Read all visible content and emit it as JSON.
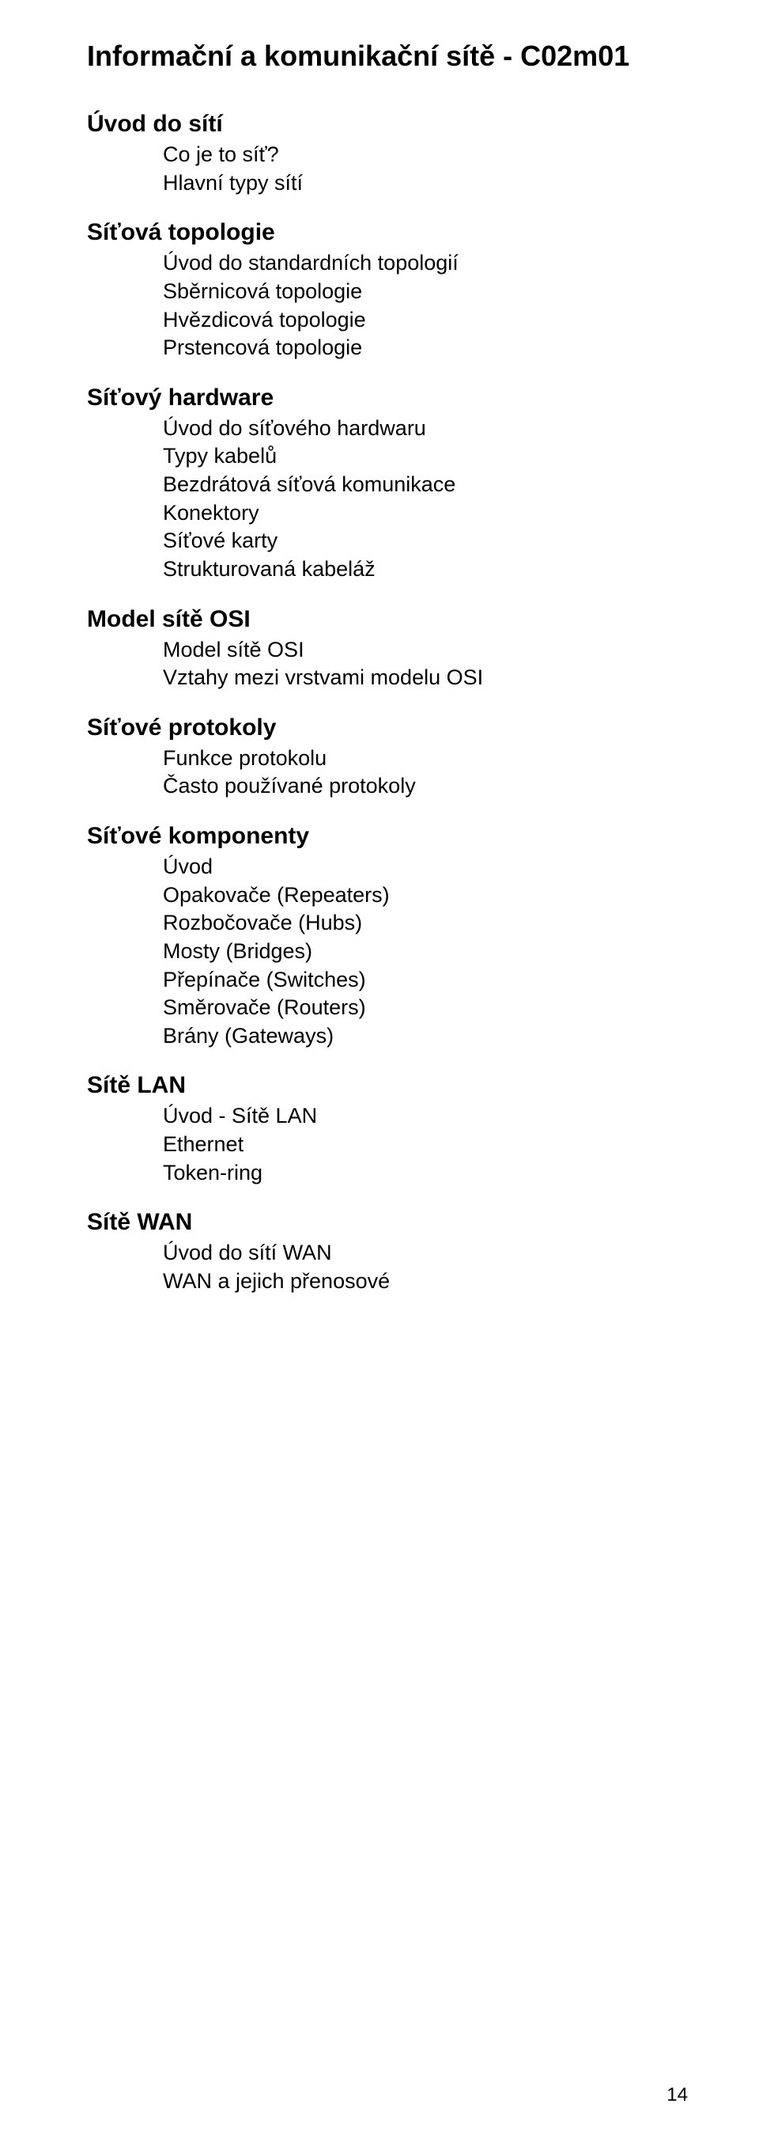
{
  "page": {
    "title": "Informační a komunikační sítě - C02m01",
    "number": "14"
  },
  "sections": [
    {
      "heading": "Úvod do sítí",
      "items": [
        "Co je to síť?",
        "Hlavní typy sítí"
      ]
    },
    {
      "heading": "Síťová topologie",
      "items": [
        "Úvod do standardních topologií",
        "Sběrnicová topologie",
        "Hvězdicová topologie",
        "Prstencová topologie"
      ]
    },
    {
      "heading": "Síťový hardware",
      "items": [
        "Úvod do síťového hardwaru",
        "Typy kabelů",
        "Bezdrátová síťová komunikace",
        "Konektory",
        "Síťové karty",
        "Strukturovaná kabeláž"
      ]
    },
    {
      "heading": "Model sítě OSI",
      "items": [
        "Model sítě OSI",
        "Vztahy mezi vrstvami modelu OSI"
      ]
    },
    {
      "heading": "Síťové protokoly",
      "items": [
        "Funkce protokolu",
        "Často používané protokoly"
      ]
    },
    {
      "heading": "Síťové komponenty",
      "items": [
        "Úvod",
        "Opakovače (Repeaters)",
        "Rozbočovače (Hubs)",
        "Mosty (Bridges)",
        "Přepínače (Switches)",
        "Směrovače (Routers)",
        "Brány (Gateways)"
      ]
    },
    {
      "heading": "Sítě LAN",
      "items": [
        "Úvod - Sítě LAN",
        "Ethernet",
        "Token-ring"
      ]
    },
    {
      "heading": "Sítě WAN",
      "items": [
        "Úvod do sítí WAN",
        "WAN a jejich přenosové"
      ]
    }
  ]
}
